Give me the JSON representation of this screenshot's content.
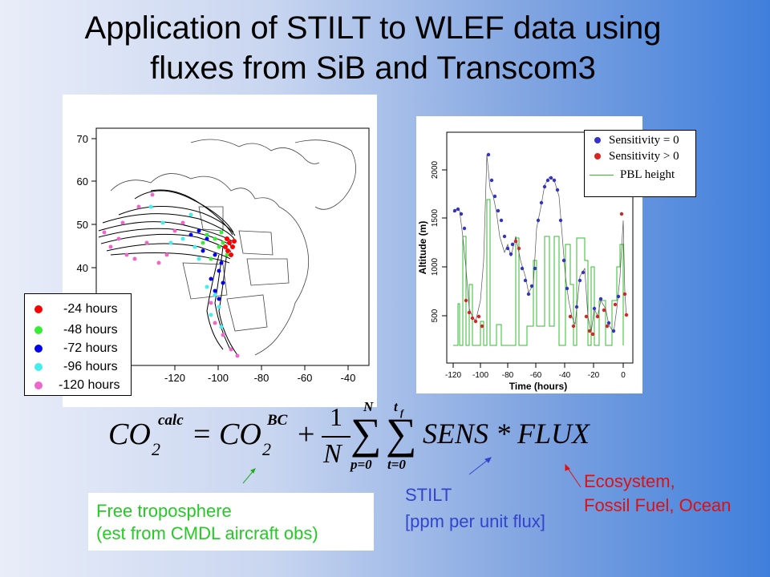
{
  "slide": {
    "title_line1": "Application of STILT to WLEF data using",
    "title_line2": "fluxes from SiB and Transcom3"
  },
  "map_panel": {
    "y_ticks": [
      "70",
      "60",
      "50",
      "40"
    ],
    "x_ticks": [
      "-120",
      "-100",
      "-80",
      "-60",
      "-40"
    ],
    "legend": [
      {
        "label": "-24 hours",
        "color": "#ff0000"
      },
      {
        "label": "-48 hours",
        "color": "#33ee33"
      },
      {
        "label": "-72 hours",
        "color": "#0000ee"
      },
      {
        "label": "-96 hours",
        "color": "#44eeee"
      },
      {
        "label": "-120 hours",
        "color": "#ee66cc"
      }
    ]
  },
  "altitude_plot": {
    "ylabel": "Altitude (m)",
    "xlabel": "Time (hours)",
    "y_ticks": [
      "2000",
      "1500",
      "1000",
      "500"
    ],
    "x_ticks": [
      "-120",
      "-100",
      "-80",
      "-60",
      "-40",
      "-20",
      "0"
    ],
    "legend": [
      {
        "label": "Sensitivity = 0",
        "color": "#3333cc"
      },
      {
        "label": "Sensitivity > 0",
        "color": "#dd2222"
      },
      {
        "label": "PBL height",
        "color": "#33bb33"
      }
    ]
  },
  "equation": {
    "co2": "CO",
    "sub2": "2",
    "calc": "calc",
    "bc": "BC",
    "equals": "=",
    "plus": "+",
    "one": "1",
    "N_den": "N",
    "N_top": "N",
    "p0": "p=0",
    "tf": "t",
    "tf_sub": "f",
    "t0": "t=0",
    "sens_flux": "SENS * FLUX"
  },
  "annotations": {
    "free_line1": "Free troposphere",
    "free_line2": "(est from CMDL aircraft obs)",
    "stilt_line1": "STILT",
    "stilt_line2": "[ppm per unit flux]",
    "eco_line1": "Ecosystem,",
    "eco_line2": "Fossil Fuel, Ocean"
  }
}
